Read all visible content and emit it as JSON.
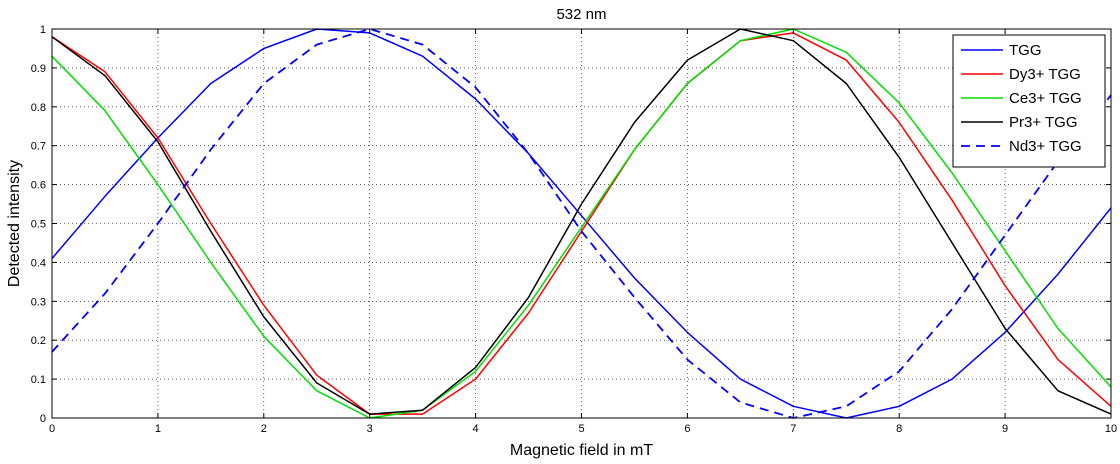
{
  "chart_data": {
    "type": "line",
    "title": "532 nm",
    "xlabel": "Magnetic field in mT",
    "ylabel": "Detected intensity",
    "xlim": [
      0,
      10
    ],
    "ylim": [
      0,
      1
    ],
    "xticks": [
      0,
      1,
      2,
      3,
      4,
      5,
      6,
      7,
      8,
      9,
      10
    ],
    "yticks": [
      0,
      0.1,
      0.2,
      0.3,
      0.4,
      0.5,
      0.6,
      0.7,
      0.8,
      0.9,
      1
    ],
    "grid": true,
    "legend_position": "top-right",
    "x": [
      0,
      0.5,
      1,
      1.5,
      2,
      2.5,
      3,
      3.5,
      4,
      4.5,
      5,
      5.5,
      6,
      6.5,
      7,
      7.5,
      8,
      8.5,
      9,
      9.5,
      10
    ],
    "series": [
      {
        "name": "TGG",
        "color": "#0000ff",
        "style": "solid",
        "values": [
          0.41,
          0.57,
          0.72,
          0.86,
          0.95,
          1.0,
          0.99,
          0.93,
          0.82,
          0.68,
          0.52,
          0.36,
          0.22,
          0.1,
          0.03,
          0.0,
          0.03,
          0.1,
          0.22,
          0.37,
          0.54
        ]
      },
      {
        "name": "Dy3+ TGG",
        "color": "#ff0000",
        "style": "solid",
        "values": [
          0.98,
          0.89,
          0.72,
          0.5,
          0.29,
          0.11,
          0.01,
          0.01,
          0.1,
          0.27,
          0.48,
          0.69,
          0.86,
          0.97,
          0.99,
          0.92,
          0.76,
          0.56,
          0.34,
          0.15,
          0.03
        ]
      },
      {
        "name": "Ce3+ TGG",
        "color": "#00e000",
        "style": "solid",
        "values": [
          0.93,
          0.79,
          0.6,
          0.4,
          0.21,
          0.07,
          0.0,
          0.02,
          0.12,
          0.29,
          0.49,
          0.69,
          0.86,
          0.97,
          1.0,
          0.94,
          0.81,
          0.63,
          0.43,
          0.23,
          0.08
        ]
      },
      {
        "name": "Pr3+ TGG",
        "color": "#000000",
        "style": "solid",
        "values": [
          0.98,
          0.88,
          0.71,
          0.48,
          0.26,
          0.09,
          0.01,
          0.02,
          0.13,
          0.31,
          0.55,
          0.76,
          0.92,
          1.0,
          0.97,
          0.86,
          0.67,
          0.45,
          0.23,
          0.07,
          0.01
        ]
      },
      {
        "name": "Nd3+ TGG",
        "color": "#0000ff",
        "style": "dashed",
        "values": [
          0.17,
          0.32,
          0.5,
          0.69,
          0.86,
          0.96,
          1.0,
          0.96,
          0.85,
          0.68,
          0.48,
          0.31,
          0.15,
          0.04,
          0.0,
          0.03,
          0.12,
          0.28,
          0.47,
          0.66,
          0.83
        ]
      }
    ]
  }
}
